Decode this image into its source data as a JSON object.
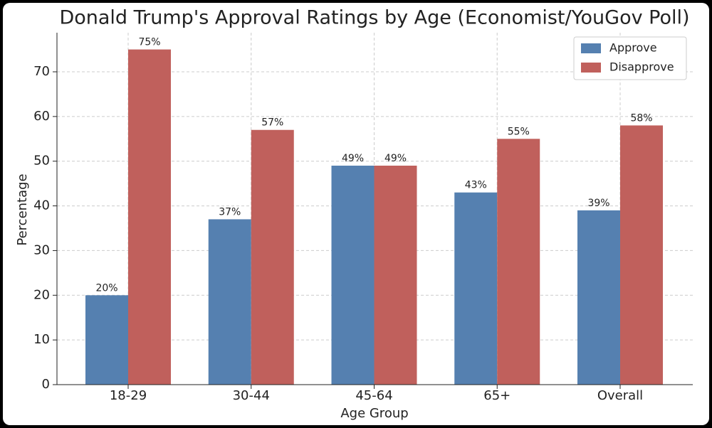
{
  "chart_data": {
    "type": "bar",
    "title": "Donald Trump's Approval Ratings by Age (Economist/YouGov Poll)",
    "x_label": "Age Group",
    "y_label": "Percentage",
    "categories": [
      "18-29",
      "30-44",
      "45-64",
      "65+",
      "Overall"
    ],
    "series": [
      {
        "name": "Approve",
        "color": "#5580b0",
        "values": [
          20,
          37,
          49,
          43,
          39
        ],
        "value_labels": [
          "20%",
          "37%",
          "49%",
          "43%",
          "39%"
        ]
      },
      {
        "name": "Disapprove",
        "color": "#c0605c",
        "values": [
          75,
          57,
          49,
          55,
          58
        ],
        "value_labels": [
          "75%",
          "57%",
          "49%",
          "55%",
          "58%"
        ]
      }
    ],
    "ylim": [
      0,
      78.75
    ],
    "yticks": [
      0,
      10,
      20,
      30,
      40,
      50,
      60,
      70
    ],
    "grid": true,
    "legend": "upper right"
  }
}
